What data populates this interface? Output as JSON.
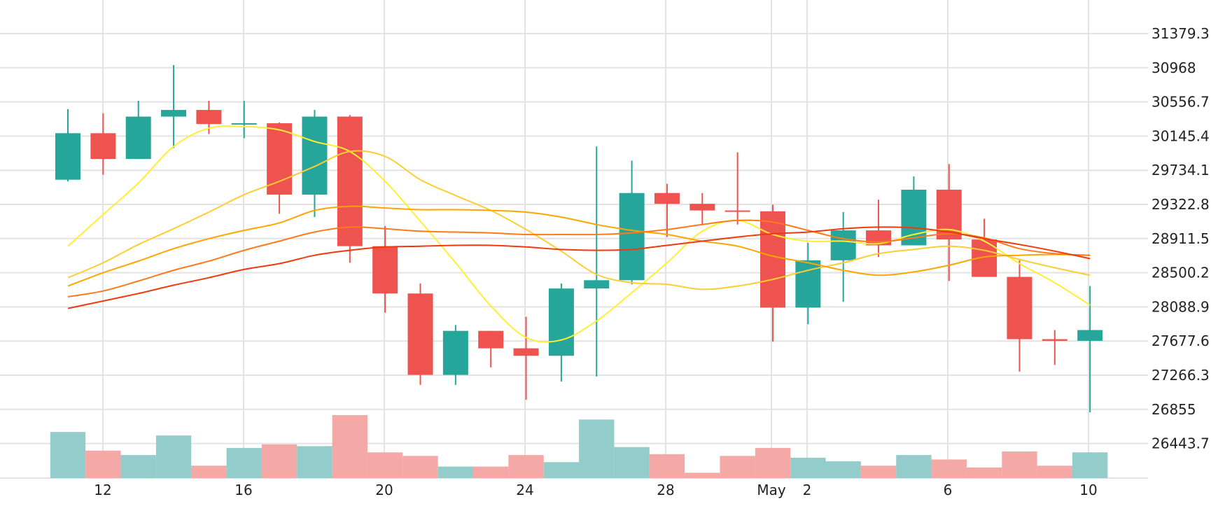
{
  "colors": {
    "up": "#26a69a",
    "down": "#ef5350",
    "up_volume": "#92cdcb",
    "down_volume": "#f4a9a7",
    "grid": "#e3e3e3",
    "text": "#222222"
  },
  "chart_data": {
    "type": "candlestick",
    "title": "",
    "xlabel": "",
    "ylabel": "",
    "grid": true,
    "x_tick_labels": [
      "12",
      "16",
      "20",
      "24",
      "28",
      "May",
      "2",
      "6",
      "10"
    ],
    "y_tick_labels": [
      "31379.3",
      "30968",
      "30556.7",
      "30145.4",
      "29734.1",
      "29322.8",
      "28911.5",
      "28500.2",
      "28088.9",
      "27677.6",
      "27266.3",
      "26855",
      "26443.7"
    ],
    "ylim": [
      26400,
      31500
    ],
    "dates": [
      "Apr 11",
      "Apr 12",
      "Apr 13",
      "Apr 14",
      "Apr 15",
      "Apr 16",
      "Apr 17",
      "Apr 18",
      "Apr 19",
      "Apr 20",
      "Apr 21",
      "Apr 22",
      "Apr 23",
      "Apr 24",
      "Apr 25",
      "Apr 26",
      "Apr 27",
      "Apr 28",
      "Apr 29",
      "Apr 30",
      "May 1",
      "May 2",
      "May 3",
      "May 4",
      "May 5",
      "May 6",
      "May 7",
      "May 8",
      "May 9",
      "May 10"
    ],
    "ohlc": [
      [
        29620,
        30470,
        29600,
        30180
      ],
      [
        30180,
        30420,
        29680,
        29870
      ],
      [
        29870,
        30570,
        29870,
        30380
      ],
      [
        30380,
        31000,
        30000,
        30460
      ],
      [
        30460,
        30570,
        30170,
        30290
      ],
      [
        30290,
        30570,
        30120,
        30300
      ],
      [
        30300,
        30310,
        29210,
        29440
      ],
      [
        29440,
        30460,
        29170,
        30380
      ],
      [
        30380,
        30400,
        28620,
        28820
      ],
      [
        28820,
        29060,
        28020,
        28250
      ],
      [
        28250,
        28370,
        27150,
        27270
      ],
      [
        27270,
        27870,
        27150,
        27800
      ],
      [
        27800,
        27800,
        27360,
        27590
      ],
      [
        27590,
        27970,
        26970,
        27500
      ],
      [
        27500,
        28370,
        27190,
        28310
      ],
      [
        28310,
        30020,
        27250,
        28410
      ],
      [
        28410,
        29850,
        28360,
        29460
      ],
      [
        29460,
        29570,
        28930,
        29330
      ],
      [
        29330,
        29460,
        29070,
        29250
      ],
      [
        29250,
        29950,
        29080,
        29240
      ],
      [
        29240,
        29320,
        27670,
        28080
      ],
      [
        28080,
        28860,
        27880,
        28650
      ],
      [
        28650,
        29230,
        28150,
        29010
      ],
      [
        29010,
        29380,
        28690,
        28830
      ],
      [
        28830,
        29660,
        28830,
        29500
      ],
      [
        29500,
        29810,
        28400,
        28900
      ],
      [
        28900,
        29150,
        28460,
        28450
      ],
      [
        28450,
        28650,
        27310,
        27700
      ],
      [
        27700,
        27810,
        27390,
        27680
      ],
      [
        27680,
        28340,
        26820,
        27810
      ]
    ],
    "volume": [
      52,
      31,
      26,
      48,
      14,
      34,
      38,
      36,
      71,
      29,
      25,
      13,
      13,
      26,
      18,
      66,
      35,
      27,
      6,
      25,
      34,
      23,
      19,
      14,
      26,
      21,
      12,
      30,
      14,
      29
    ],
    "moving_averages": [
      {
        "color": "#ffee33",
        "values": [
          28820,
          29200,
          29580,
          30020,
          30240,
          30260,
          30220,
          30080,
          29960,
          29600,
          29120,
          28620,
          28100,
          27720,
          27690,
          27920,
          28260,
          28620,
          29000,
          29130,
          28960,
          28880,
          28880,
          28850,
          28960,
          29020,
          28880,
          28610,
          28380,
          28110
        ]
      },
      {
        "color": "#ffcc33",
        "values": [
          28440,
          28620,
          28840,
          29030,
          29230,
          29440,
          29600,
          29780,
          29960,
          29900,
          29620,
          29430,
          29250,
          29020,
          28760,
          28480,
          28380,
          28360,
          28300,
          28340,
          28420,
          28530,
          28620,
          28730,
          28780,
          28820,
          28770,
          28660,
          28560,
          28470
        ]
      },
      {
        "color": "#ffa500",
        "values": [
          28340,
          28500,
          28640,
          28790,
          28910,
          29010,
          29100,
          29250,
          29300,
          29280,
          29260,
          29260,
          29250,
          29230,
          29170,
          29080,
          29010,
          28960,
          28880,
          28820,
          28700,
          28620,
          28530,
          28470,
          28510,
          28590,
          28690,
          28710,
          28720,
          28710
        ]
      },
      {
        "color": "#ff7a1a",
        "values": [
          28210,
          28280,
          28400,
          28530,
          28640,
          28770,
          28880,
          28990,
          29050,
          29030,
          29000,
          28990,
          28980,
          28960,
          28960,
          28960,
          28980,
          29020,
          29080,
          29130,
          29110,
          29010,
          28910,
          28870,
          28920,
          28970,
          28920,
          28790,
          28730,
          28710
        ]
      },
      {
        "color": "#ee3a0c",
        "values": [
          28070,
          28160,
          28250,
          28350,
          28440,
          28540,
          28610,
          28710,
          28770,
          28810,
          28820,
          28830,
          28830,
          28810,
          28780,
          28770,
          28780,
          28830,
          28880,
          28930,
          28970,
          28990,
          29030,
          29050,
          29040,
          28990,
          28910,
          28840,
          28760,
          28670
        ]
      }
    ]
  }
}
